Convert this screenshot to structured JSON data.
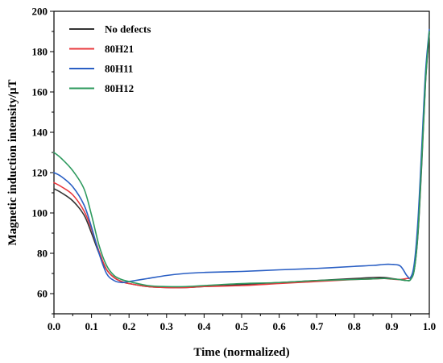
{
  "chart_data": {
    "type": "line",
    "title": "",
    "xlabel": "Time (normalized)",
    "ylabel": "Magnetic induction intensity/μT",
    "xlim": [
      0.0,
      1.0
    ],
    "ylim": [
      50,
      200
    ],
    "xticks": [
      "0.0",
      "0.1",
      "0.2",
      "0.3",
      "0.4",
      "0.5",
      "0.6",
      "0.7",
      "0.8",
      "0.9",
      "1.0"
    ],
    "yticks": [
      "60",
      "80",
      "100",
      "120",
      "140",
      "160",
      "180",
      "200"
    ],
    "grid": false,
    "legend_position": "top-left",
    "series": [
      {
        "name": "No defects",
        "color": "#333333",
        "x": [
          0.0,
          0.02,
          0.05,
          0.08,
          0.1,
          0.12,
          0.14,
          0.16,
          0.18,
          0.2,
          0.25,
          0.3,
          0.35,
          0.4,
          0.5,
          0.6,
          0.7,
          0.8,
          0.85,
          0.88,
          0.9,
          0.92,
          0.94,
          0.95,
          0.96,
          0.97,
          0.98,
          0.99,
          1.0
        ],
        "y": [
          112,
          110,
          106,
          99,
          90,
          80,
          72,
          68,
          66,
          65,
          63.5,
          63,
          63,
          63.5,
          64.5,
          65.5,
          66.5,
          67.5,
          68,
          68,
          67.5,
          67,
          66.5,
          67,
          72,
          90,
          125,
          165,
          189
        ]
      },
      {
        "name": "80H21",
        "color": "#e8383d",
        "x": [
          0.0,
          0.02,
          0.05,
          0.08,
          0.1,
          0.12,
          0.14,
          0.16,
          0.18,
          0.2,
          0.25,
          0.3,
          0.35,
          0.4,
          0.5,
          0.6,
          0.7,
          0.8,
          0.85,
          0.88,
          0.9,
          0.92,
          0.94,
          0.95,
          0.96,
          0.97,
          0.98,
          0.99,
          1.0
        ],
        "y": [
          115,
          113,
          109,
          101,
          92,
          81,
          72,
          68,
          66,
          65,
          63.5,
          63,
          63,
          63.5,
          64,
          65,
          66,
          67,
          67.3,
          67.5,
          67.2,
          67,
          67.5,
          68,
          73,
          92,
          128,
          167,
          190
        ]
      },
      {
        "name": "80H11",
        "color": "#2a5fc4",
        "x": [
          0.0,
          0.02,
          0.05,
          0.08,
          0.1,
          0.12,
          0.14,
          0.16,
          0.18,
          0.2,
          0.25,
          0.3,
          0.35,
          0.4,
          0.5,
          0.6,
          0.7,
          0.8,
          0.85,
          0.88,
          0.9,
          0.92,
          0.93,
          0.94,
          0.95,
          0.96,
          0.97,
          0.98,
          0.99,
          1.0
        ],
        "y": [
          120,
          118,
          113,
          104,
          93,
          80,
          70,
          66.5,
          65.5,
          66,
          67.5,
          69,
          70,
          70.5,
          71,
          71.8,
          72.5,
          73.5,
          74,
          74.5,
          74.5,
          74,
          72,
          69,
          68,
          75,
          97,
          133,
          170,
          191
        ]
      },
      {
        "name": "80H12",
        "color": "#2e9a5e",
        "x": [
          0.0,
          0.02,
          0.05,
          0.08,
          0.1,
          0.12,
          0.14,
          0.16,
          0.18,
          0.2,
          0.25,
          0.3,
          0.35,
          0.4,
          0.5,
          0.6,
          0.7,
          0.8,
          0.85,
          0.88,
          0.9,
          0.92,
          0.94,
          0.95,
          0.96,
          0.97,
          0.98,
          0.99,
          1.0
        ],
        "y": [
          130,
          127,
          121,
          112,
          99,
          84,
          74,
          69,
          67,
          66,
          64,
          63.5,
          63.5,
          64,
          65,
          65.5,
          66.5,
          67,
          67.3,
          67.5,
          67.3,
          67,
          66.5,
          67,
          72,
          91,
          127,
          166,
          190
        ]
      }
    ]
  }
}
